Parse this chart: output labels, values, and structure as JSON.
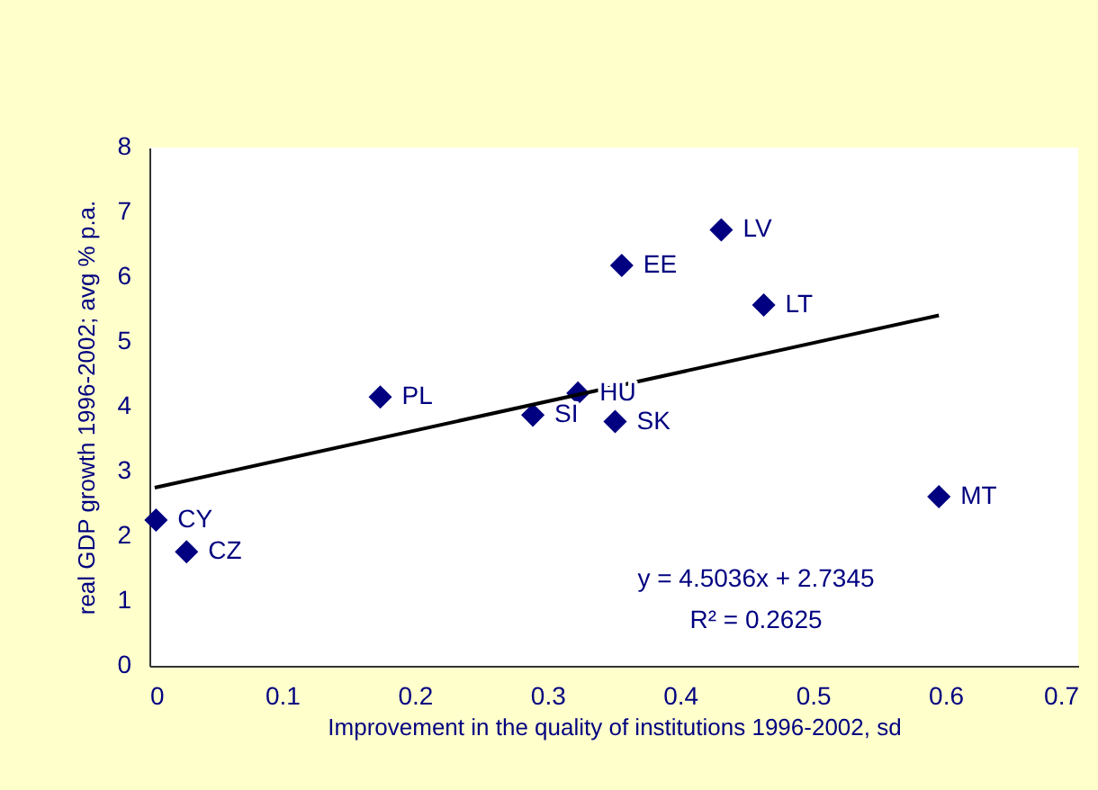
{
  "chart_data": {
    "type": "scatter",
    "xlabel": "Improvement in the quality of institutions 1996-2002, sd",
    "ylabel": "real GDP growth 1996-2002; avg % p.a.",
    "xlim": [
      0,
      0.7
    ],
    "xticks": [
      0,
      0.1,
      0.2,
      0.3,
      0.4,
      0.5,
      0.6,
      0.7
    ],
    "ylim": [
      0,
      8
    ],
    "yticks": [
      0,
      1,
      2,
      3,
      4,
      5,
      6,
      7,
      8
    ],
    "marker": "diamond",
    "series": [
      {
        "name": "CY",
        "color": "#000080",
        "x": [
          0.005
        ],
        "values": [
          2.25
        ]
      },
      {
        "name": "CZ",
        "color": "#000080",
        "x": [
          0.028
        ],
        "values": [
          1.76
        ]
      },
      {
        "name": "PL",
        "color": "#000080",
        "x": [
          0.174
        ],
        "values": [
          4.15
        ]
      },
      {
        "name": "SI",
        "color": "#000080",
        "x": [
          0.289
        ],
        "values": [
          3.87
        ]
      },
      {
        "name": "HU",
        "color": "#000080",
        "x": [
          0.323
        ],
        "values": [
          4.21
        ]
      },
      {
        "name": "SK",
        "color": "#000080",
        "x": [
          0.351
        ],
        "values": [
          3.77
        ]
      },
      {
        "name": "EE",
        "color": "#000080",
        "x": [
          0.356
        ],
        "values": [
          6.18
        ]
      },
      {
        "name": "LV",
        "color": "#000080",
        "x": [
          0.431
        ],
        "values": [
          6.73
        ]
      },
      {
        "name": "LT",
        "color": "#000080",
        "x": [
          0.463
        ],
        "values": [
          5.57
        ]
      },
      {
        "name": "MT",
        "color": "#000080",
        "x": [
          0.595
        ],
        "values": [
          2.61
        ]
      },
      {
        "type": "line",
        "marker": "none",
        "color": "#000000",
        "x": [
          0.004,
          0.595
        ],
        "values": [
          2.75,
          5.41
        ]
      }
    ],
    "annotations": [
      "y = 4.5036x + 2.7345",
      "R² = 0.2625"
    ]
  }
}
